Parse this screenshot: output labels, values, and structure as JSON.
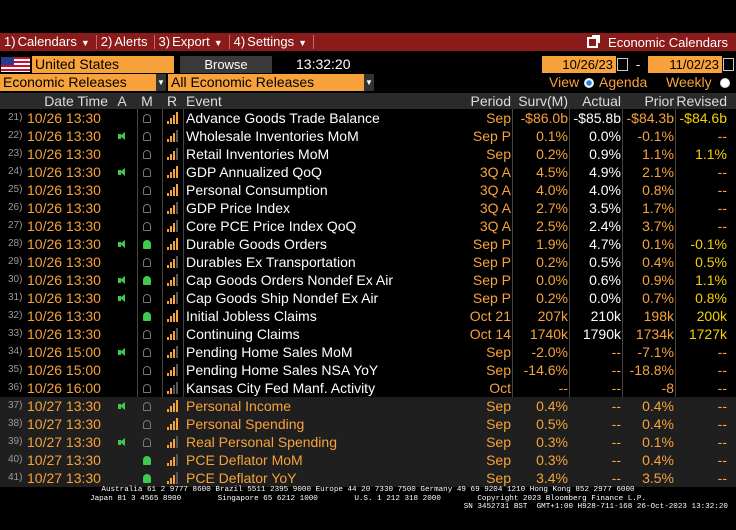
{
  "menu": {
    "items": [
      {
        "num": "1)",
        "label": "Calendars",
        "caret": "▼"
      },
      {
        "num": "2)",
        "label": "Alerts",
        "caret": ""
      },
      {
        "num": "3)",
        "label": "Export",
        "caret": "▼"
      },
      {
        "num": "4)",
        "label": "Settings",
        "caret": "▼"
      }
    ],
    "right_label": "Economic Calendars"
  },
  "toolbar": {
    "country": "United States",
    "browse": "Browse",
    "time": "13:32:20",
    "date_start": "10/26/23",
    "date_dash": "-",
    "date_end": "11/02/23",
    "release_filter": "Economic Releases",
    "event_filter": "All Economic Releases",
    "view_label": "View",
    "agenda_label": "Agenda",
    "weekly_label": "Weekly"
  },
  "table": {
    "headers": {
      "date": "Date Time",
      "a": "A",
      "m": "M",
      "r": "R",
      "event": "Event",
      "period": "Period",
      "surv": "Surv(M)",
      "actual": "Actual",
      "prior": "Prior",
      "rev": "Revised"
    },
    "rows": [
      {
        "idx": "21)",
        "date": "10/26 13:30",
        "a": false,
        "m": false,
        "r": 4,
        "event": "Advance Goods Trade Balance",
        "period": "Sep",
        "surv": "-$86.0b",
        "actual": "-$85.8b",
        "prior": "-$84.3b",
        "rev": "-$84.6b",
        "hl": false
      },
      {
        "idx": "22)",
        "date": "10/26 13:30",
        "a": true,
        "m": false,
        "r": 3,
        "event": "Wholesale Inventories MoM",
        "period": "Sep P",
        "surv": "0.1%",
        "actual": "0.0%",
        "prior": "-0.1%",
        "rev": "--",
        "hl": false
      },
      {
        "idx": "23)",
        "date": "10/26 13:30",
        "a": false,
        "m": false,
        "r": 3,
        "event": "Retail Inventories MoM",
        "period": "Sep",
        "surv": "0.2%",
        "actual": "0.9%",
        "prior": "1.1%",
        "rev": "1.1%",
        "hl": false
      },
      {
        "idx": "24)",
        "date": "10/26 13:30",
        "a": true,
        "m": false,
        "r": 4,
        "event": "GDP Annualized QoQ",
        "period": "3Q A",
        "surv": "4.5%",
        "actual": "4.9%",
        "prior": "2.1%",
        "rev": "--",
        "hl": false
      },
      {
        "idx": "25)",
        "date": "10/26 13:30",
        "a": false,
        "m": false,
        "r": 4,
        "event": "Personal Consumption",
        "period": "3Q A",
        "surv": "4.0%",
        "actual": "4.0%",
        "prior": "0.8%",
        "rev": "--",
        "hl": false
      },
      {
        "idx": "26)",
        "date": "10/26 13:30",
        "a": false,
        "m": false,
        "r": 3,
        "event": "GDP Price Index",
        "period": "3Q A",
        "surv": "2.7%",
        "actual": "3.5%",
        "prior": "1.7%",
        "rev": "--",
        "hl": false
      },
      {
        "idx": "27)",
        "date": "10/26 13:30",
        "a": false,
        "m": false,
        "r": 3,
        "event": "Core PCE Price Index QoQ",
        "period": "3Q A",
        "surv": "2.5%",
        "actual": "2.4%",
        "prior": "3.7%",
        "rev": "--",
        "hl": false
      },
      {
        "idx": "28)",
        "date": "10/26 13:30",
        "a": true,
        "m": true,
        "r": 4,
        "event": "Durable Goods Orders",
        "period": "Sep P",
        "surv": "1.9%",
        "actual": "4.7%",
        "prior": "0.1%",
        "rev": "-0.1%",
        "hl": false
      },
      {
        "idx": "29)",
        "date": "10/26 13:30",
        "a": false,
        "m": false,
        "r": 3,
        "event": "Durables Ex Transportation",
        "period": "Sep P",
        "surv": "0.2%",
        "actual": "0.5%",
        "prior": "0.4%",
        "rev": "0.5%",
        "hl": false
      },
      {
        "idx": "30)",
        "date": "10/26 13:30",
        "a": true,
        "m": true,
        "r": 3,
        "event": "Cap Goods Orders Nondef Ex Air",
        "period": "Sep P",
        "surv": "0.0%",
        "actual": "0.6%",
        "prior": "0.9%",
        "rev": "1.1%",
        "hl": false
      },
      {
        "idx": "31)",
        "date": "10/26 13:30",
        "a": true,
        "m": false,
        "r": 3,
        "event": "Cap Goods Ship Nondef Ex Air",
        "period": "Sep P",
        "surv": "0.2%",
        "actual": "0.0%",
        "prior": "0.7%",
        "rev": "0.8%",
        "hl": false
      },
      {
        "idx": "32)",
        "date": "10/26 13:30",
        "a": false,
        "m": true,
        "r": 4,
        "event": "Initial Jobless Claims",
        "period": "Oct 21",
        "surv": "207k",
        "actual": "210k",
        "prior": "198k",
        "rev": "200k",
        "hl": false
      },
      {
        "idx": "33)",
        "date": "10/26 13:30",
        "a": false,
        "m": false,
        "r": 3,
        "event": "Continuing Claims",
        "period": "Oct 14",
        "surv": "1740k",
        "actual": "1790k",
        "prior": "1734k",
        "rev": "1727k",
        "hl": false
      },
      {
        "idx": "34)",
        "date": "10/26 15:00",
        "a": true,
        "m": false,
        "r": 3,
        "event": "Pending Home Sales MoM",
        "period": "Sep",
        "surv": "-2.0%",
        "actual": "--",
        "prior": "-7.1%",
        "rev": "--",
        "hl": false
      },
      {
        "idx": "35)",
        "date": "10/26 15:00",
        "a": false,
        "m": false,
        "r": 3,
        "event": "Pending Home Sales NSA YoY",
        "period": "Sep",
        "surv": "-14.6%",
        "actual": "--",
        "prior": "-18.8%",
        "rev": "--",
        "hl": false
      },
      {
        "idx": "36)",
        "date": "10/26 16:00",
        "a": false,
        "m": false,
        "r": 2,
        "event": "Kansas City Fed Manf. Activity",
        "period": "Oct",
        "surv": "--",
        "actual": "--",
        "prior": "-8",
        "rev": "--",
        "hl": false
      },
      {
        "idx": "37)",
        "date": "10/27 13:30",
        "a": true,
        "m": false,
        "r": 4,
        "event": "Personal Income",
        "period": "Sep",
        "surv": "0.4%",
        "actual": "--",
        "prior": "0.4%",
        "rev": "--",
        "hl": true
      },
      {
        "idx": "38)",
        "date": "10/27 13:30",
        "a": false,
        "m": false,
        "r": 4,
        "event": "Personal Spending",
        "period": "Sep",
        "surv": "0.5%",
        "actual": "--",
        "prior": "0.4%",
        "rev": "--",
        "hl": true
      },
      {
        "idx": "39)",
        "date": "10/27 13:30",
        "a": true,
        "m": false,
        "r": 3,
        "event": "Real Personal Spending",
        "period": "Sep",
        "surv": "0.3%",
        "actual": "--",
        "prior": "0.1%",
        "rev": "--",
        "hl": true
      },
      {
        "idx": "40)",
        "date": "10/27 13:30",
        "a": false,
        "m": true,
        "r": 3,
        "event": "PCE Deflator MoM",
        "period": "Sep",
        "surv": "0.3%",
        "actual": "--",
        "prior": "0.4%",
        "rev": "--",
        "hl": true
      },
      {
        "idx": "41)",
        "date": "10/27 13:30",
        "a": false,
        "m": true,
        "r": 3,
        "event": "PCE Deflator YoY",
        "period": "Sep",
        "surv": "3.4%",
        "actual": "--",
        "prior": "3.5%",
        "rev": "--",
        "hl": true
      }
    ]
  },
  "footer": {
    "line1": "Australia 61 2 9777 8600 Brazil 5511 2395 9000 Europe 44 20 7330 7500 Germany 49 69 9204 1210 Hong Kong 852 2977 6000",
    "line2": "Japan 81 3 4565 8900        Singapore 65 6212 1000        U.S. 1 212 318 2000        Copyright 2023 Bloomberg Finance L.P.",
    "line3": "SN 3452731 BST  GMT+1:00 H928-711-168 26-Oct-2023 13:32:20"
  },
  "colors": {
    "accent": "#f7a23a",
    "menubar": "#8b1a1a",
    "alert_green": "#3ec94f",
    "revised_yellow": "#f5d000",
    "rating_bar": "#f7a23a"
  }
}
